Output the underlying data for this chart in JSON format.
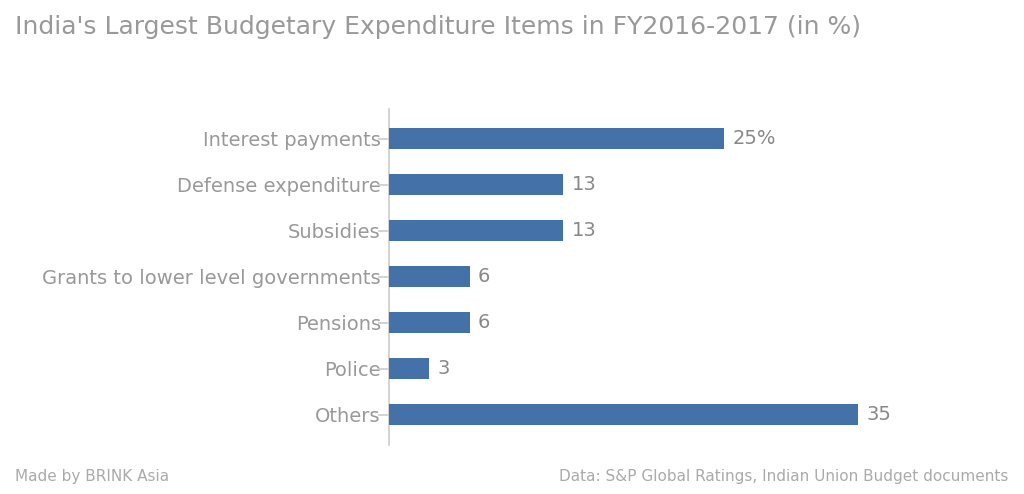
{
  "title": "India's Largest Budgetary Expenditure Items in FY2016-2017 (in %)",
  "categories": [
    "Interest payments",
    "Defense expenditure",
    "Subsidies",
    "Grants to lower level governments",
    "Pensions",
    "Police",
    "Others"
  ],
  "values": [
    25,
    13,
    13,
    6,
    6,
    3,
    35
  ],
  "labels": [
    "25%",
    "13",
    "13",
    "6",
    "6",
    "3",
    "35"
  ],
  "bar_color": "#4472a8",
  "background_color": "#ffffff",
  "label_color": "#999999",
  "title_color": "#999999",
  "footer_color": "#aaaaaa",
  "spine_color": "#cccccc",
  "footer_left": "Made by BRINK Asia",
  "footer_right": "Data: S&P Global Ratings, Indian Union Budget documents",
  "xlim": [
    0,
    42
  ],
  "bar_height": 0.45,
  "title_fontsize": 18,
  "label_fontsize": 14,
  "tick_fontsize": 14,
  "footer_fontsize": 11,
  "value_label_color": "#888888"
}
